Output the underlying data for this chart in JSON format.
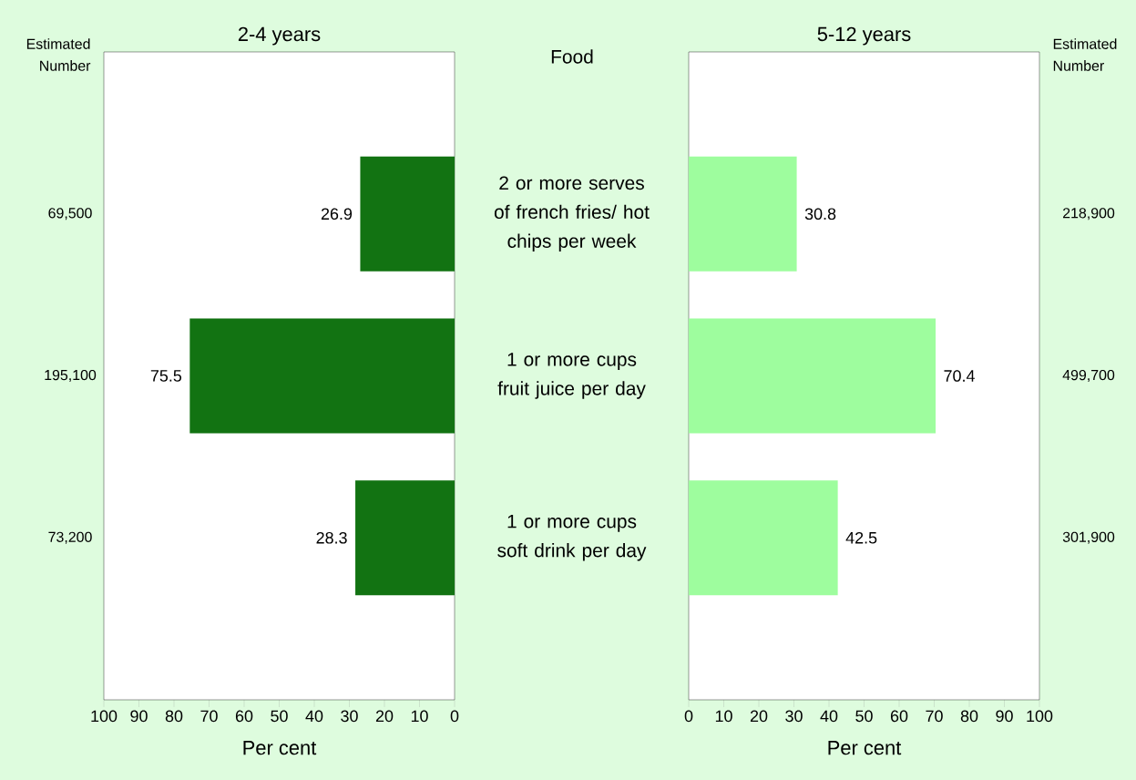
{
  "chart_data": [
    {
      "type": "bar",
      "orientation": "horizontal",
      "title": "2-4 years",
      "ylabel": "Food",
      "xlabel": "Per cent",
      "categories": [
        "2 or more serves of french fries/ hot chips per week",
        "1 or more cups fruit juice per day",
        "1 or more cups soft drink per day"
      ],
      "values": [
        26.9,
        75.5,
        28.3
      ],
      "color": "#127312",
      "xlim": [
        100,
        0
      ],
      "xticks": [
        100,
        90,
        80,
        70,
        60,
        50,
        40,
        30,
        20,
        10,
        0
      ],
      "data_labels": true,
      "annotations": [
        "Estimated Number",
        "69,500",
        "195,100",
        "73,200"
      ]
    },
    {
      "type": "bar",
      "orientation": "horizontal",
      "title": "5-12 years",
      "xlabel": "Per cent",
      "categories": [
        null,
        null,
        null
      ],
      "values": [
        30.8,
        70.4,
        42.5
      ],
      "color": "#9efd9e",
      "xlim": [
        0,
        100
      ],
      "xticks": [
        0,
        10,
        20,
        30,
        40,
        50,
        60,
        70,
        80,
        90,
        100
      ],
      "data_labels": true,
      "annotations": [
        "Estimated Number",
        "218,900",
        "499,700",
        "301,900"
      ]
    }
  ]
}
